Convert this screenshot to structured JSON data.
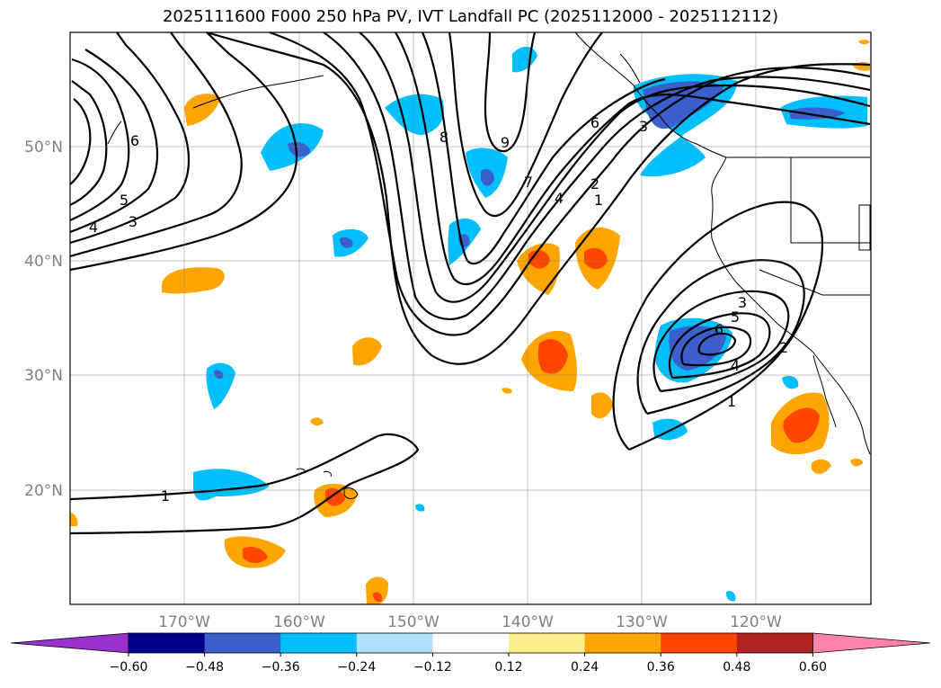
{
  "title": "2025111600 F000 250 hPa PV, IVT Landfall PC (2025112000 - 2025112112)",
  "lat_labels": [
    "50°N",
    "40°N",
    "30°N",
    "20°N"
  ],
  "lon_labels": [
    "170°W",
    "160°W",
    "150°W",
    "140°W",
    "130°W",
    "120°W"
  ],
  "colorbar": {
    "ticks": [
      "−0.60",
      "−0.48",
      "−0.36",
      "−0.24",
      "−0.12",
      "0.12",
      "0.24",
      "0.36",
      "0.48",
      "0.60"
    ],
    "colors": [
      "#9932cc",
      "#00008b",
      "#3a5fcd",
      "#00bfff",
      "#b0e2ff",
      "#ffffff",
      "#ffec8b",
      "#ffa500",
      "#ff4500",
      "#b22222",
      "#ff82ab"
    ]
  },
  "contour_labels": [
    "1",
    "2",
    "3",
    "4",
    "5",
    "6",
    "7",
    "8",
    "9",
    "6",
    "5",
    "4",
    "3",
    "1",
    "3",
    "6",
    "4",
    "2",
    "1",
    "6",
    "3",
    "2",
    "1"
  ]
}
